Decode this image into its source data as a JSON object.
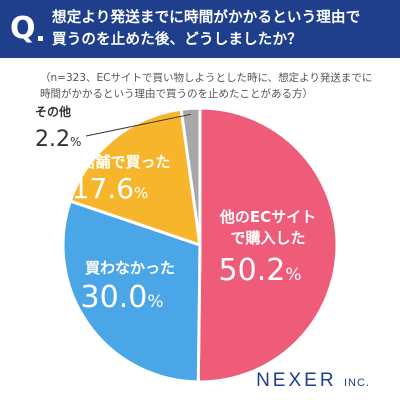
{
  "question": {
    "mark": "Q",
    "line1": "想定より発送までに時間がかかるという理由で",
    "line2": "買うのを止めた後、どうしましたか？"
  },
  "note": {
    "line1": "（n=323、ECサイトで買い物しようとした時に、想定より発送までに",
    "line2": "時間がかかるという理由で買うのを止めたことがある方）"
  },
  "brand": {
    "name": "NEXER",
    "suffix": "INC."
  },
  "chart_data": {
    "type": "pie",
    "unit": "%",
    "start_angle_deg": 0,
    "direction": "clockwise",
    "slices": [
      {
        "label": "他のECサイトで購入した",
        "label_lines": [
          "他のECサイト",
          "で購入した"
        ],
        "value": 50.2,
        "value_text": "50.2",
        "color": "#ef5c7a",
        "text_color": "#ffffff"
      },
      {
        "label": "買わなかった",
        "label_lines": [
          "買わなかった"
        ],
        "value": 30.0,
        "value_text": "30.0",
        "color": "#4ba6e8",
        "text_color": "#ffffff"
      },
      {
        "label": "実店舗で買った",
        "label_lines": [
          "実店舗で買った"
        ],
        "value": 17.6,
        "value_text": "17.6",
        "color": "#f7b52c",
        "text_color": "#ffffff"
      },
      {
        "label": "その他",
        "label_lines": [
          "その他"
        ],
        "value": 2.2,
        "value_text": "2.2",
        "color": "#a7a7a7",
        "text_color": "#333333"
      }
    ]
  }
}
